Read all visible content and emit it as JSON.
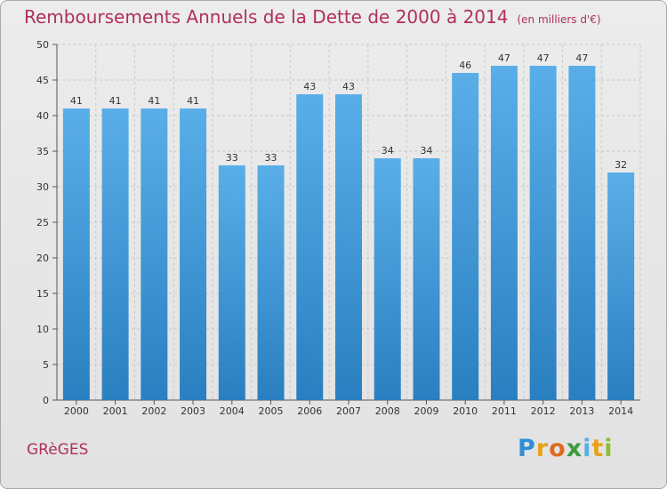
{
  "chart_data": {
    "type": "bar",
    "title": "Remboursements Annuels de la Dette de 2000 à 2014",
    "subtitle": "(en milliers d'€)",
    "categories": [
      "2000",
      "2001",
      "2002",
      "2003",
      "2004",
      "2005",
      "2006",
      "2007",
      "2008",
      "2009",
      "2010",
      "2011",
      "2012",
      "2013",
      "2014"
    ],
    "values": [
      41,
      41,
      41,
      41,
      33,
      33,
      43,
      43,
      34,
      34,
      46,
      47,
      47,
      47,
      32
    ],
    "xlabel": "",
    "ylabel": "",
    "ylim": [
      0,
      50
    ],
    "yticks": [
      0,
      5,
      10,
      15,
      20,
      25,
      30,
      35,
      40,
      45,
      50
    ],
    "grid": true,
    "bar_color_top": "#5aaee8",
    "bar_color_bottom": "#2a7fc0"
  },
  "footer": {
    "commune": "GRèGES",
    "logo": {
      "letters": [
        "P",
        "r",
        "o",
        "x",
        "i",
        "t",
        "i"
      ],
      "colors": [
        "#2f8fd6",
        "#e7a21b",
        "#e06a1c",
        "#3b9c3b",
        "#5aaee8",
        "#e7a21b",
        "#8bbf35"
      ]
    }
  }
}
